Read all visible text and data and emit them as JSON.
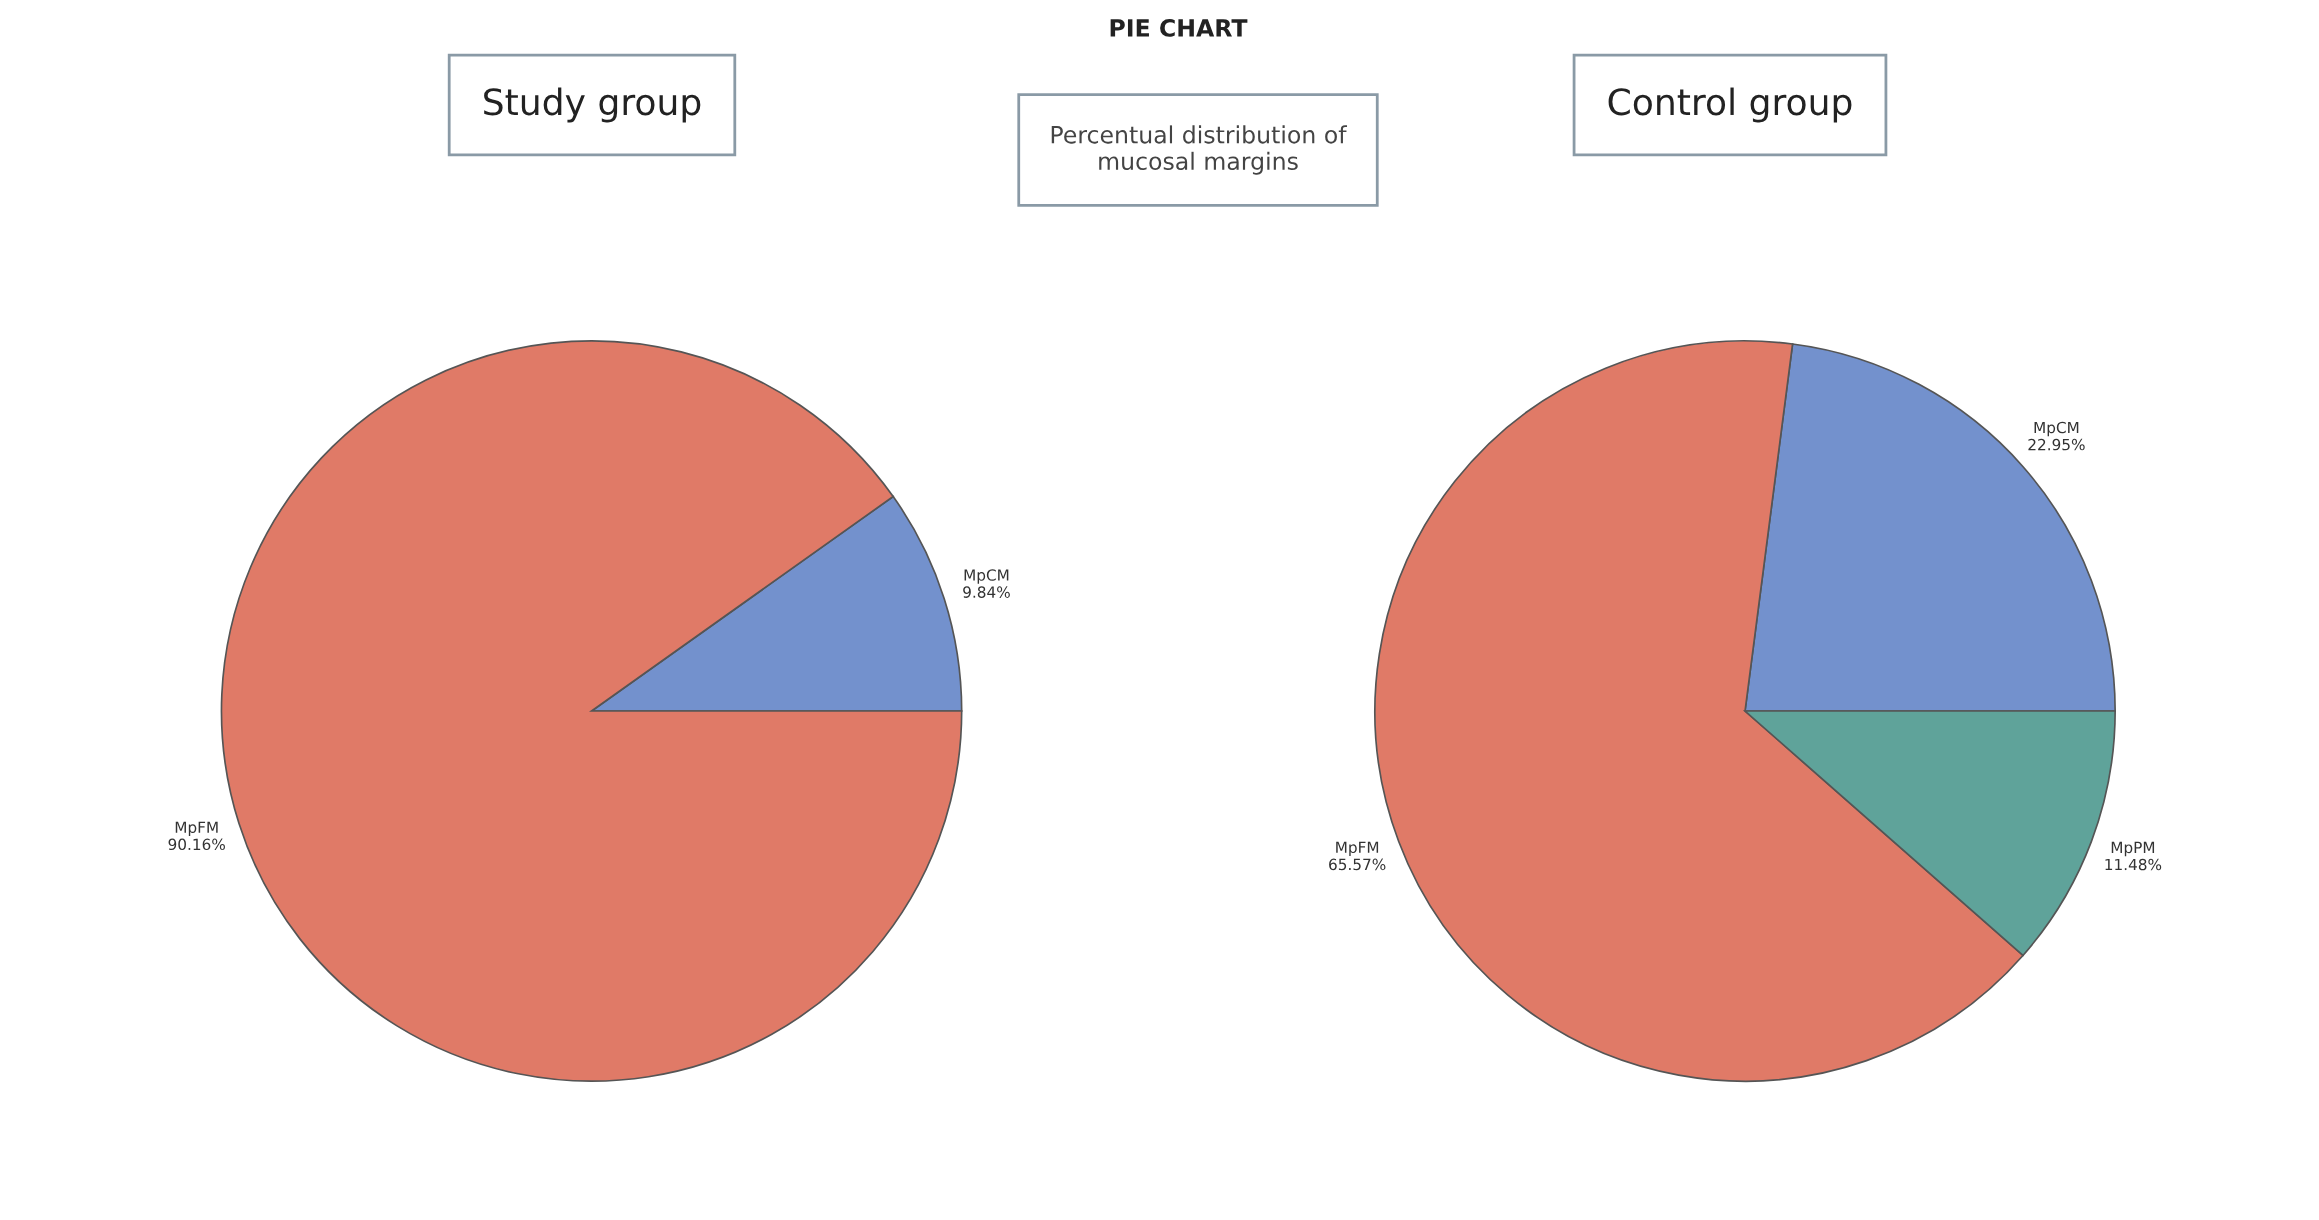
{
  "chart_data": [
    {
      "type": "pie",
      "title": "Study group",
      "annotations": [
        "PIE CHART",
        "Percentual distribution of\nmucosal margins"
      ],
      "categories": [
        "MpCM",
        "MpFM"
      ],
      "values": [
        9.84,
        90.16
      ],
      "value_labels": [
        "9.84%",
        "90.16%"
      ],
      "colors": [
        "#7391cd",
        "#e07a67"
      ]
    },
    {
      "type": "pie",
      "title": "Control group",
      "categories": [
        "MpCM",
        "MpFM",
        "MpPM"
      ],
      "values": [
        22.95,
        65.57,
        11.48
      ],
      "value_labels": [
        "22.95%",
        "65.57%",
        "11.48%"
      ],
      "colors": [
        "#7391cd",
        "#e07a67",
        "#5fa39a"
      ]
    }
  ]
}
